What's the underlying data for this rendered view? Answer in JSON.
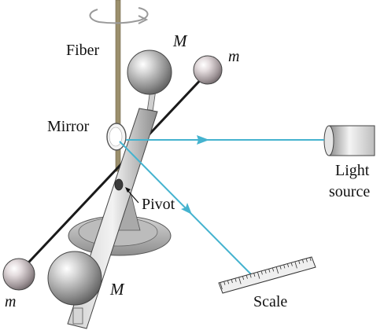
{
  "labels": {
    "fiber": "Fiber",
    "mirror": "Mirror",
    "pivot": "Pivot",
    "light_source_line1": "Light",
    "light_source_line2": "source",
    "scale": "Scale",
    "large_mass_top": "M",
    "large_mass_bottom": "M",
    "small_mass_top": "m",
    "small_mass_bottom": "m"
  },
  "colors": {
    "light_beam": "#45b3cf",
    "fiber": "#9b8f6c",
    "rod": "#8a8a8a",
    "base": "#9d9d9d"
  },
  "icons": {
    "rotation_arrow": "curved-rotation-arrow-icon"
  }
}
